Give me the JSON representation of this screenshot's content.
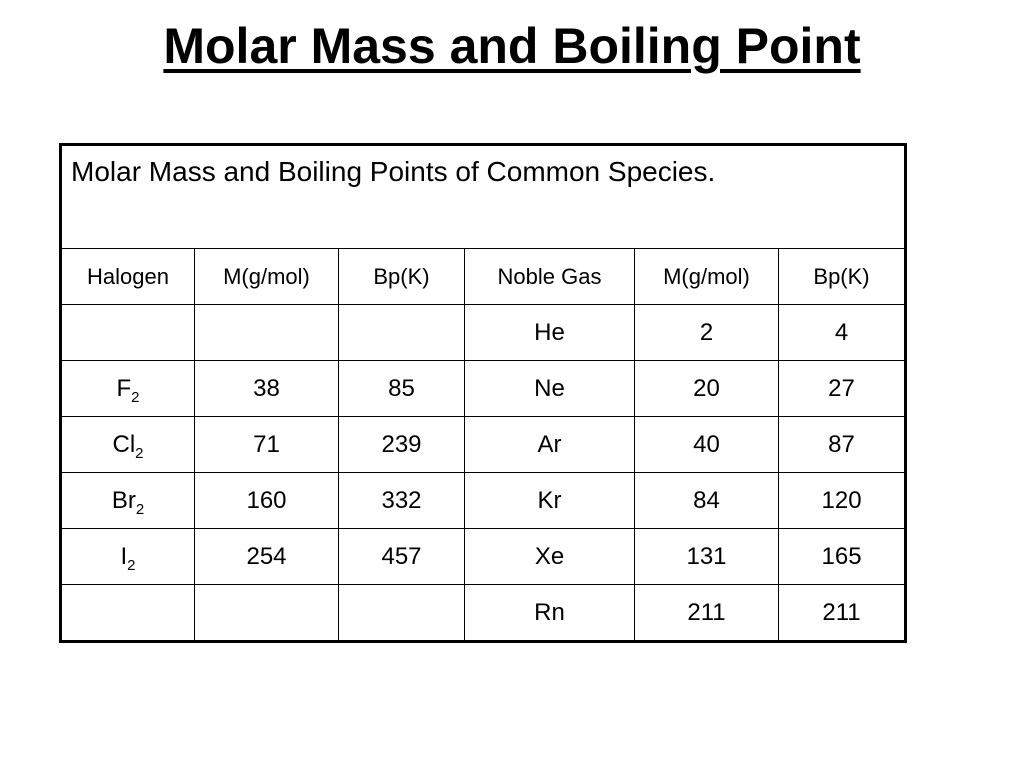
{
  "title": "Molar Mass and Boiling Point",
  "table": {
    "caption": "Molar Mass and Boiling Points of Common Species.",
    "headers": [
      "Halogen",
      "M(g/mol)",
      "Bp(K)",
      "Noble Gas",
      "M(g/mol)",
      "Bp(K)"
    ],
    "rows": [
      {
        "halogen": "",
        "halogen_sub": "",
        "h_mass": "",
        "h_bp": "",
        "noble": "He",
        "n_mass": "2",
        "n_bp": "4"
      },
      {
        "halogen": "F",
        "halogen_sub": "2",
        "h_mass": "38",
        "h_bp": "85",
        "noble": "Ne",
        "n_mass": "20",
        "n_bp": "27"
      },
      {
        "halogen": "Cl",
        "halogen_sub": "2",
        "h_mass": "71",
        "h_bp": "239",
        "noble": "Ar",
        "n_mass": "40",
        "n_bp": "87"
      },
      {
        "halogen": "Br",
        "halogen_sub": "2",
        "h_mass": "160",
        "h_bp": "332",
        "noble": "Kr",
        "n_mass": "84",
        "n_bp": "120"
      },
      {
        "halogen": "I",
        "halogen_sub": "2",
        "h_mass": "254",
        "h_bp": "457",
        "noble": "Xe",
        "n_mass": "131",
        "n_bp": "165"
      },
      {
        "halogen": "",
        "halogen_sub": "",
        "h_mass": "",
        "h_bp": "",
        "noble": "Rn",
        "n_mass": "211",
        "n_bp": "211"
      }
    ]
  }
}
